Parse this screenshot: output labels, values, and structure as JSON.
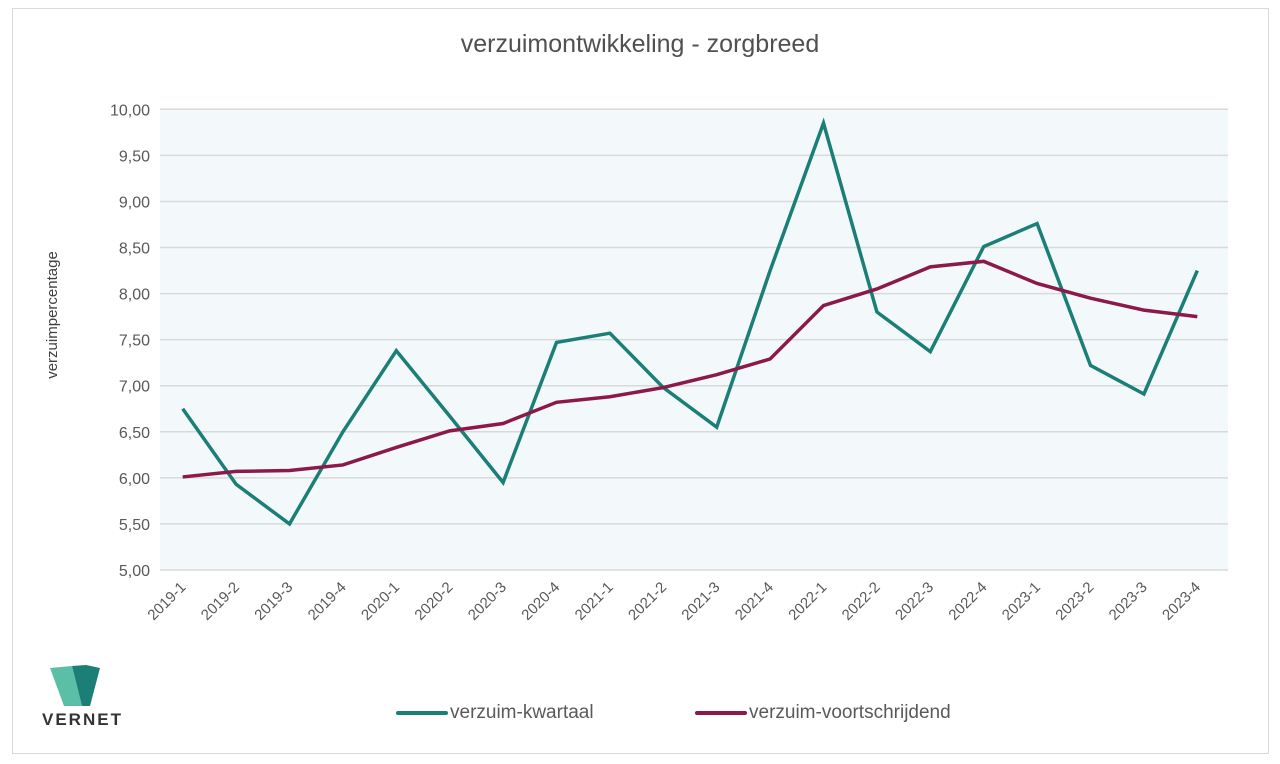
{
  "chart_data": {
    "type": "line",
    "title": "verzuimontwikkeling - zorgbreed",
    "xlabel": "",
    "ylabel": "verzuimpercentage",
    "ylim": [
      5,
      10
    ],
    "yticks": [
      "5,00",
      "5,50",
      "6,00",
      "6,50",
      "7,00",
      "7,50",
      "8,00",
      "8,50",
      "9,00",
      "9,50",
      "10,00"
    ],
    "ytick_values": [
      5,
      5.5,
      6,
      6.5,
      7,
      7.5,
      8,
      8.5,
      9,
      9.5,
      10
    ],
    "grid": true,
    "legend_position": "bottom",
    "categories": [
      "2019-1",
      "2019-2",
      "2019-3",
      "2019-4",
      "2020-1",
      "2020-2",
      "2020-3",
      "2020-4",
      "2021-1",
      "2021-2",
      "2021-3",
      "2021-4",
      "2022-1",
      "2022-2",
      "2022-3",
      "2022-4",
      "2023-1",
      "2023-2",
      "2023-3",
      "2023-4"
    ],
    "series": [
      {
        "name": "verzuim-kwartaal",
        "color": "#1b7f78",
        "values": [
          6.75,
          5.93,
          5.5,
          6.5,
          7.38,
          6.67,
          5.95,
          7.47,
          7.57,
          6.98,
          6.55,
          8.25,
          9.85,
          7.8,
          7.37,
          8.51,
          8.76,
          7.22,
          6.91,
          8.25
        ]
      },
      {
        "name": "verzuim-voortschrijdend",
        "color": "#8b1a4b",
        "values": [
          6.01,
          6.07,
          6.08,
          6.14,
          6.33,
          6.51,
          6.59,
          6.82,
          6.88,
          6.98,
          7.12,
          7.29,
          7.87,
          8.05,
          8.29,
          8.35,
          8.11,
          7.95,
          7.82,
          7.75
        ]
      }
    ],
    "plot_background": "#f3f9fb",
    "grid_color": "#d9d9d9"
  },
  "logo": {
    "text": "VERNET",
    "colors": [
      "#5bbfa8",
      "#1b7f78"
    ]
  }
}
